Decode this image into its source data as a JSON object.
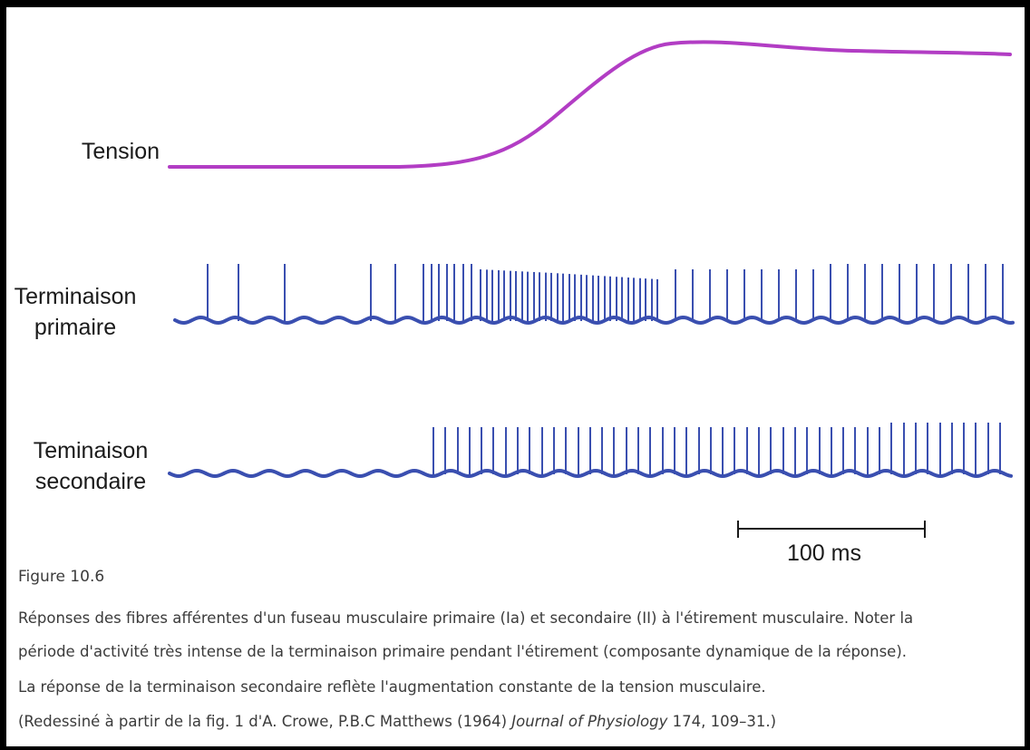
{
  "diagram": {
    "labels": {
      "tension": "Tension",
      "primary_line1": "Terminaison",
      "primary_line2": "primaire",
      "secondary_line1": "Teminaison",
      "secondary_line2": "secondaire"
    },
    "scale_bar": "100 ms",
    "colors": {
      "tension": "#b23dc4",
      "spikes": "#3a4fb0"
    }
  },
  "caption": {
    "figure": "Figure 10.6",
    "line1": "Réponses des fibres afférentes d'un fuseau musculaire primaire (Ia) et secondaire (II) à l'étirement musculaire. Noter la",
    "line2": "période d'activité très intense de la terminaison primaire pendant l'étirement (composante dynamique de la réponse).",
    "line3": "La réponse de la terminaison secondaire reflète l'augmentation constante de la tension musculaire.",
    "ref_prefix": "(Redessiné à partir de la fig. 1 d'A. Crowe, P.B.C Matthews (1964) ",
    "ref_journal": "Journal of Physiology",
    "ref_suffix": " 174, 109–31.)"
  }
}
